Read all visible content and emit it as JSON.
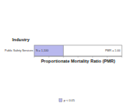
{
  "chart_data": {
    "type": "bar",
    "orientation": "horizontal",
    "y_label": "Industry",
    "x_label": "Proportionate Mortality Ratio (PMR)",
    "categories": [
      "Public Safety Services"
    ],
    "series": [
      {
        "name": "p < 0.05",
        "color": "#b8b8ee",
        "values": [
          1.0
        ]
      }
    ],
    "annotations": [
      "N = 1,100",
      "PMR = 1.00"
    ],
    "xlim": [
      0,
      3
    ],
    "xticks": [
      0,
      0.5,
      1,
      1.5,
      2,
      2.5,
      3
    ],
    "tick_labels": false,
    "legend": "bottom"
  }
}
